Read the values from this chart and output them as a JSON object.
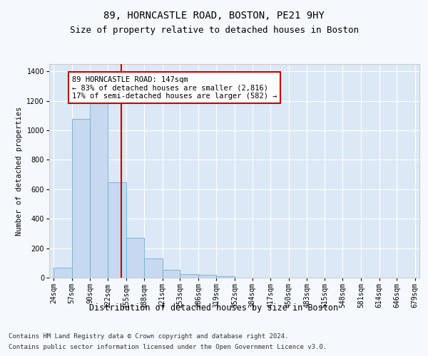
{
  "title1": "89, HORNCASTLE ROAD, BOSTON, PE21 9HY",
  "title2": "Size of property relative to detached houses in Boston",
  "xlabel": "Distribution of detached houses by size in Boston",
  "ylabel": "Number of detached properties",
  "footer1": "Contains HM Land Registry data © Crown copyright and database right 2024.",
  "footer2": "Contains public sector information licensed under the Open Government Licence v3.0.",
  "annotation_line1": "89 HORNCASTLE ROAD: 147sqm",
  "annotation_line2": "← 83% of detached houses are smaller (2,816)",
  "annotation_line3": "17% of semi-detached houses are larger (582) →",
  "bar_color": "#c6d9f0",
  "bar_edge_color": "#6baed6",
  "vline_color": "#cc0000",
  "vline_x": 147,
  "bin_edges": [
    24,
    57,
    90,
    122,
    155,
    188,
    221,
    253,
    286,
    319,
    352,
    384,
    417,
    450,
    483,
    515,
    548,
    581,
    614,
    646,
    679
  ],
  "bar_heights": [
    70,
    1080,
    1320,
    650,
    270,
    130,
    55,
    25,
    20,
    10,
    0,
    0,
    0,
    0,
    0,
    0,
    0,
    0,
    0,
    0
  ],
  "ylim": [
    0,
    1450
  ],
  "yticks": [
    0,
    200,
    400,
    600,
    800,
    1000,
    1200,
    1400
  ],
  "bg_color": "#dce8f5",
  "plot_bg_color": "#dce8f5",
  "grid_color": "#ffffff",
  "fig_bg_color": "#f5f8fd",
  "title1_fontsize": 10,
  "title2_fontsize": 9,
  "xlabel_fontsize": 8.5,
  "ylabel_fontsize": 7.5,
  "tick_fontsize": 7,
  "footer_fontsize": 6.5,
  "annot_fontsize": 7.5
}
